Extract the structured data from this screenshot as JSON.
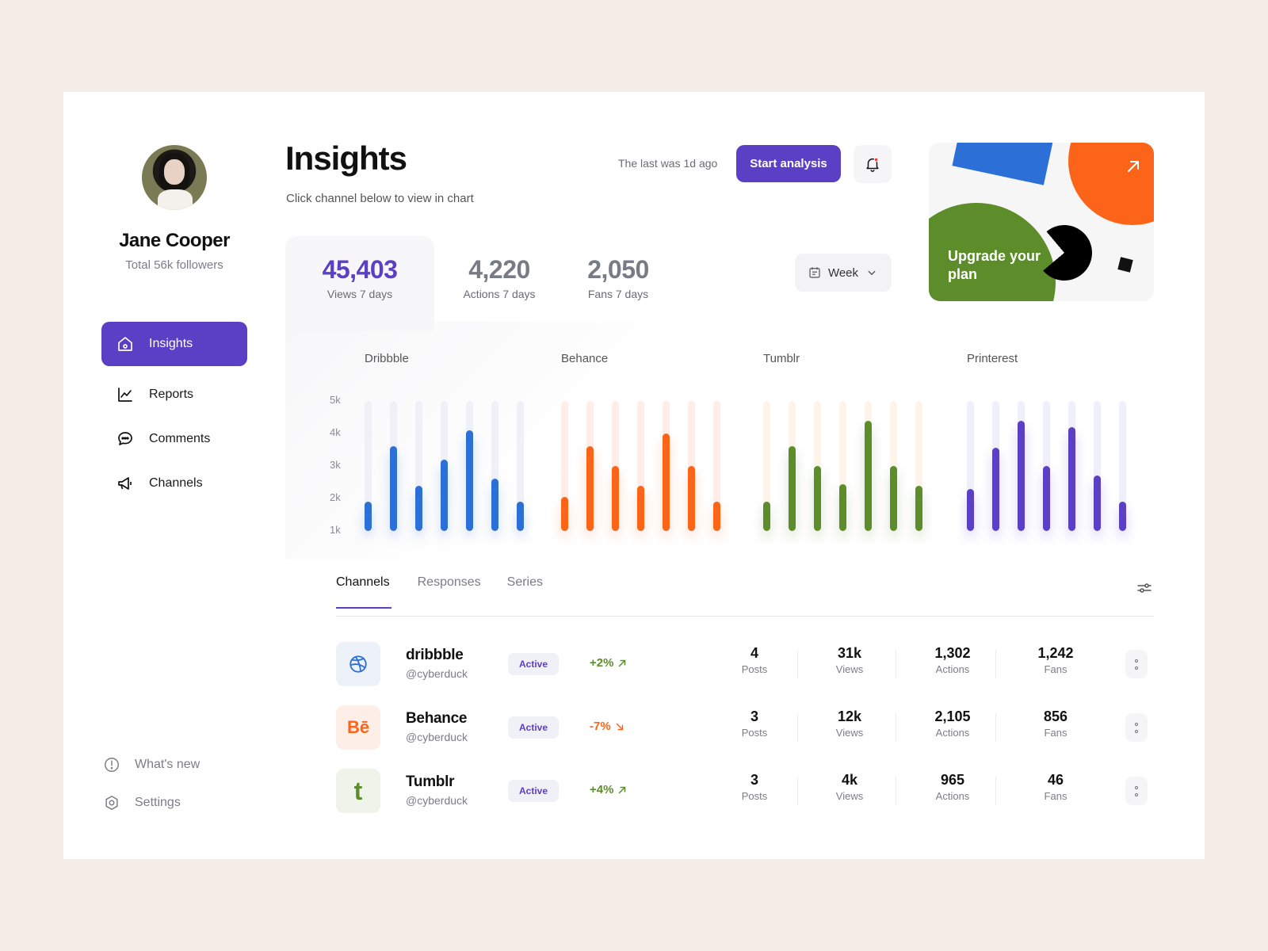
{
  "user": {
    "name": "Jane Cooper",
    "followers": "Total 56k followers"
  },
  "nav": {
    "items": [
      {
        "label": "Insights",
        "icon": "home-icon",
        "active": true
      },
      {
        "label": "Reports",
        "icon": "chart-line-icon",
        "active": false
      },
      {
        "label": "Comments",
        "icon": "chat-bubble-icon",
        "active": false
      },
      {
        "label": "Channels",
        "icon": "megaphone-icon",
        "active": false
      }
    ],
    "bottom": [
      {
        "label": "What's new",
        "icon": "info-circle-icon"
      },
      {
        "label": "Settings",
        "icon": "hexagon-settings-icon"
      }
    ]
  },
  "header": {
    "title": "Insights",
    "subtitle": "Click channel below to view in chart",
    "last_was": "The last was 1d ago",
    "start_button": "Start analysis"
  },
  "upgrade": {
    "text": "Upgrade your plan"
  },
  "stats": [
    {
      "value": "45,403",
      "label": "Views 7 days"
    },
    {
      "value": "4,220",
      "label": "Actions 7 days"
    },
    {
      "value": "2,050",
      "label": "Fans 7 days"
    }
  ],
  "period_select": "Week",
  "colors": {
    "accent": "#5b3fc4",
    "dribbble": "#2c6fd6",
    "behance": "#fb6419",
    "tumblr": "#5c8d2a",
    "printerest": "#5b3fc4"
  },
  "chart_data": {
    "type": "bar",
    "title": "",
    "yticks": [
      "5k",
      "4k",
      "3k",
      "2k",
      "1k"
    ],
    "ylim": [
      1000,
      5000
    ],
    "series": [
      {
        "name": "Dribbble",
        "color": "#2c6fd6",
        "track": "#eef1f6",
        "values": [
          1900,
          3600,
          2400,
          3200,
          4100,
          2600,
          1900
        ]
      },
      {
        "name": "Behance",
        "color": "#fb6419",
        "track": "#fdeee7",
        "values": [
          2050,
          3600,
          3000,
          2400,
          4000,
          3000,
          1900
        ]
      },
      {
        "name": "Tumblr",
        "color": "#5c8d2a",
        "track": "#fdf5e8",
        "values": [
          1900,
          3600,
          3000,
          2450,
          4400,
          3000,
          2400
        ]
      },
      {
        "name": "Printerest",
        "color": "#5b3fc4",
        "track": "#f0f0fb",
        "values": [
          2300,
          3550,
          4400,
          3000,
          4200,
          2700,
          1900
        ]
      }
    ]
  },
  "tabs": [
    {
      "label": "Channels",
      "active": true
    },
    {
      "label": "Responses",
      "active": false
    },
    {
      "label": "Series",
      "active": false
    }
  ],
  "channels": [
    {
      "name": "dribbble",
      "handle": "@cyberduck",
      "status": "Active",
      "change": "+2%",
      "trend": "up",
      "icon": "dribbble-icon",
      "icon_text": "",
      "icon_bg": "#edf1f8",
      "icon_color": "#2c6fd6",
      "change_color": "#5c8d2a",
      "posts": "4",
      "views": "31k",
      "actions": "1,302",
      "fans": "1,242"
    },
    {
      "name": "Behance",
      "handle": "@cyberduck",
      "status": "Active",
      "change": "-7%",
      "trend": "down",
      "icon": "behance-icon",
      "icon_text": "Bē",
      "icon_bg": "#fdeee8",
      "icon_color": "#fb6419",
      "change_color": "#fb6419",
      "posts": "3",
      "views": "12k",
      "actions": "2,105",
      "fans": "856"
    },
    {
      "name": "Tumblr",
      "handle": "@cyberduck",
      "status": "Active",
      "change": "+4%",
      "trend": "up",
      "icon": "tumblr-icon",
      "icon_text": "t",
      "icon_bg": "#eef4ea",
      "icon_color": "#5c8d2a",
      "change_color": "#5c8d2a",
      "posts": "3",
      "views": "4k",
      "actions": "965",
      "fans": "46"
    }
  ],
  "metric_labels": {
    "posts": "Posts",
    "views": "Views",
    "actions": "Actions",
    "fans": "Fans"
  }
}
